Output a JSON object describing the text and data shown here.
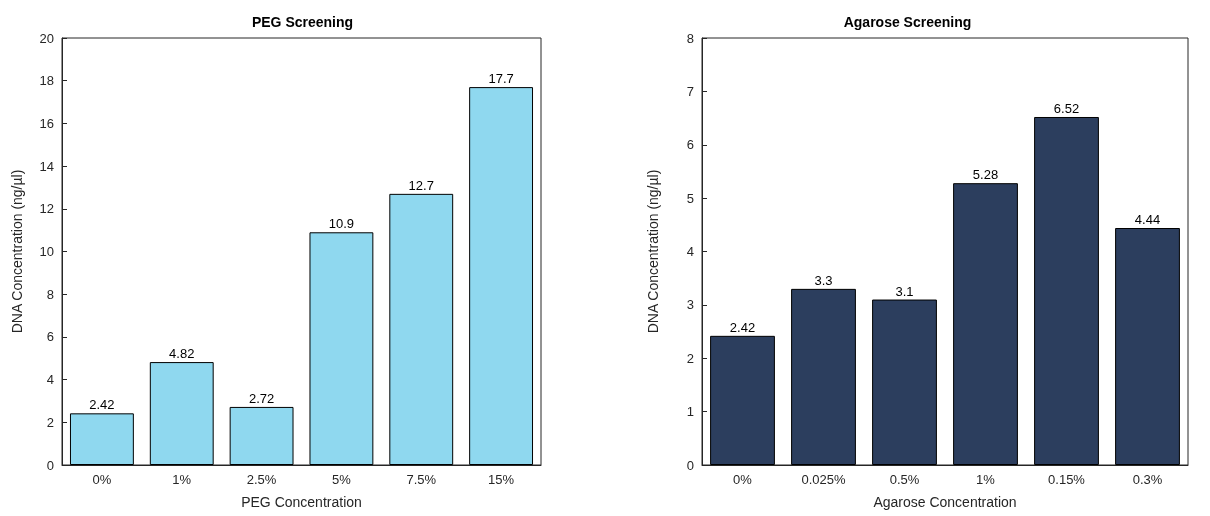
{
  "chart_data": [
    {
      "type": "bar",
      "title": "PEG Screening",
      "xlabel": "PEG Concentration",
      "ylabel": "DNA Concentration (ng/µl)",
      "categories": [
        "0%",
        "1%",
        "2.5%",
        "5%",
        "7.5%",
        "15%"
      ],
      "values": [
        2.42,
        4.82,
        2.72,
        10.9,
        12.7,
        17.7
      ],
      "color": "#8fd8ef",
      "ylim": [
        0,
        20
      ],
      "yticks": [
        0,
        2,
        4,
        6,
        8,
        10,
        12,
        14,
        16,
        18,
        20
      ],
      "grid": false,
      "data_labels": true
    },
    {
      "type": "bar",
      "title": "Agarose Screening",
      "xlabel": "Agarose Concentration",
      "ylabel": "DNA Concentration (ng/µl)",
      "categories": [
        "0%",
        "0.025%",
        "0.5%",
        "1%",
        "0.15%",
        "0.3%"
      ],
      "values": [
        2.42,
        3.3,
        3.1,
        5.28,
        6.52,
        4.44
      ],
      "color": "#2c3e5e",
      "ylim": [
        0,
        8
      ],
      "yticks": [
        0,
        1,
        2,
        3,
        4,
        5,
        6,
        7,
        8
      ],
      "grid": false,
      "data_labels": true
    }
  ]
}
